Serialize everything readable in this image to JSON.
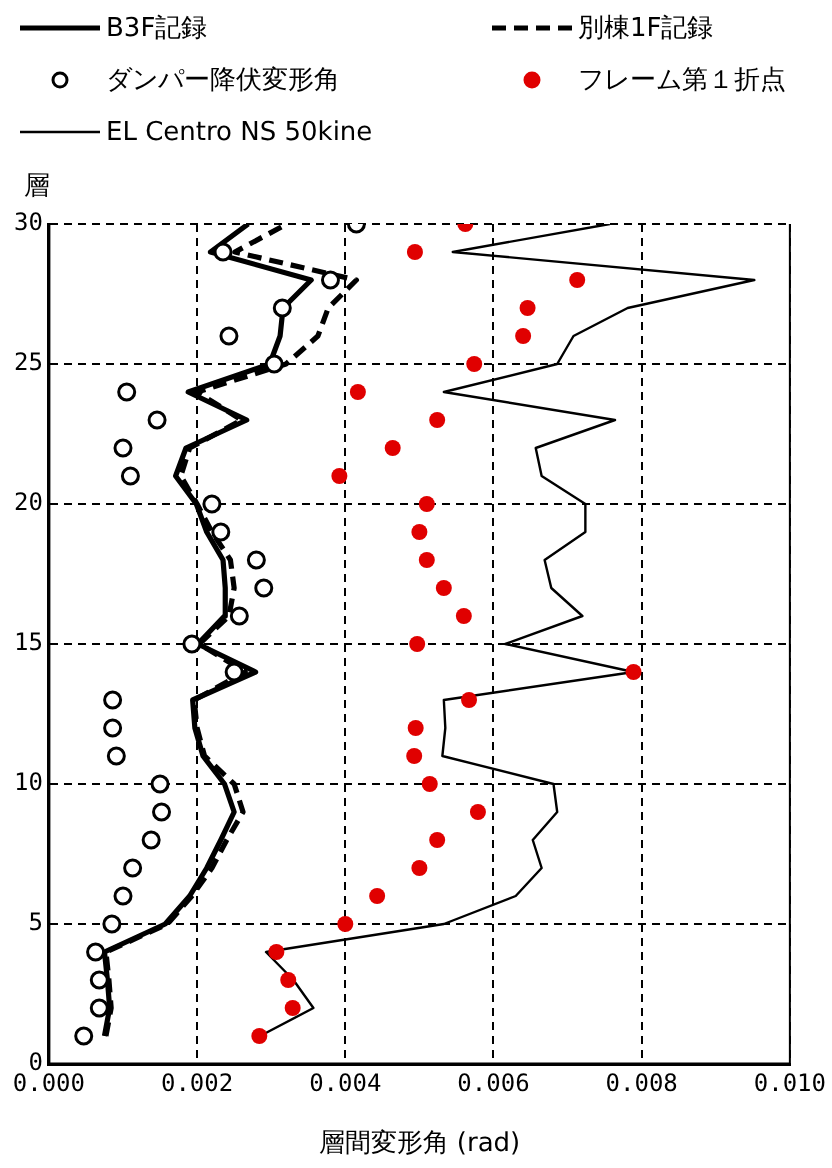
{
  "chart_data": {
    "type": "line",
    "xlabel": "層間変形角 (rad)",
    "ylabel": "層",
    "xlim": [
      0,
      0.01
    ],
    "ylim": [
      0,
      30
    ],
    "xticks": [
      {
        "value": 0,
        "label": "0.000"
      },
      {
        "value": 0.002,
        "label": "0.002"
      },
      {
        "value": 0.004,
        "label": "0.004"
      },
      {
        "value": 0.006,
        "label": "0.006"
      },
      {
        "value": 0.008,
        "label": "0.008"
      },
      {
        "value": 0.01,
        "label": "0.010"
      }
    ],
    "yticks": [
      0,
      5,
      10,
      15,
      20,
      25,
      30
    ],
    "grid": true,
    "legend": "top",
    "series": [
      {
        "name": "B3F記録",
        "line_style": "solid",
        "marker": "none",
        "color": "#000000",
        "x": [
          0.00075,
          0.00082,
          0.00079,
          0.00075,
          0.00157,
          0.0019,
          0.00213,
          0.00232,
          0.0025,
          0.00237,
          0.00208,
          0.00197,
          0.00194,
          0.00279,
          0.00201,
          0.00237,
          0.00238,
          0.00235,
          0.00213,
          0.00199,
          0.00171,
          0.00185,
          0.00267,
          0.00188,
          0.00298,
          0.00312,
          0.00316,
          0.00354,
          0.00218,
          0.00269
        ],
        "values": [
          1,
          2,
          3,
          4,
          5,
          6,
          7,
          8,
          9,
          10,
          11,
          12,
          13,
          14,
          15,
          16,
          17,
          18,
          19,
          20,
          21,
          22,
          23,
          24,
          25,
          26,
          27,
          28,
          29,
          30
        ]
      },
      {
        "name": "別棟1F記録",
        "line_style": "dashed",
        "marker": "none",
        "color": "#000000",
        "x": [
          0.00077,
          0.00084,
          0.00081,
          0.00077,
          0.0016,
          0.00193,
          0.0022,
          0.0024,
          0.00262,
          0.0025,
          0.0021,
          0.002,
          0.00196,
          0.00265,
          0.00203,
          0.00243,
          0.0025,
          0.00245,
          0.0022,
          0.002,
          0.00178,
          0.0019,
          0.0026,
          0.002,
          0.0032,
          0.00363,
          0.00377,
          0.00415,
          0.00251,
          0.00321
        ],
        "values": [
          1,
          2,
          3,
          4,
          5,
          6,
          7,
          8,
          9,
          10,
          11,
          12,
          13,
          14,
          15,
          16,
          17,
          18,
          19,
          20,
          21,
          22,
          23,
          24,
          25,
          26,
          27,
          28,
          29,
          30
        ]
      },
      {
        "name": "ダンパー降伏変形角",
        "type": "scatter",
        "marker": "circle",
        "color": "#000000",
        "x": [
          0.00047,
          0.00068,
          0.00068,
          0.00063,
          0.00085,
          0.001,
          0.00113,
          0.00138,
          0.00152,
          0.0015,
          0.00091,
          0.00086,
          0.00086,
          0.0025,
          0.00193,
          0.00257,
          0.0029,
          0.0028,
          0.00232,
          0.0022,
          0.0011,
          0.001,
          0.00146,
          0.00105,
          0.00304,
          0.00243,
          0.00315,
          0.0038,
          0.00235,
          0.00415
        ],
        "values": [
          1,
          2,
          3,
          4,
          5,
          6,
          7,
          8,
          9,
          10,
          11,
          12,
          13,
          14,
          15,
          16,
          17,
          18,
          19,
          20,
          21,
          22,
          23,
          24,
          25,
          26,
          27,
          28,
          29,
          30
        ]
      },
      {
        "name": "フレーム第１折点",
        "type": "scatter",
        "marker": "circle",
        "color": "#e00000",
        "x": [
          0.00284,
          0.00329,
          0.00323,
          0.00307,
          0.004,
          0.00443,
          0.005,
          0.00524,
          0.00579,
          0.00514,
          0.00493,
          0.00495,
          0.00567,
          0.00789,
          0.00497,
          0.0056,
          0.00533,
          0.0051,
          0.005,
          0.0051,
          0.00392,
          0.00464,
          0.00524,
          0.00417,
          0.00574,
          0.0064,
          0.00646,
          0.00713,
          0.00494,
          0.00562
        ],
        "values": [
          1,
          2,
          3,
          4,
          5,
          6,
          7,
          8,
          9,
          10,
          11,
          12,
          13,
          14,
          15,
          16,
          17,
          18,
          19,
          20,
          21,
          22,
          23,
          24,
          25,
          26,
          27,
          28,
          29,
          30
        ]
      },
      {
        "name": "EL Centro NS 50kine",
        "line_style": "solid",
        "marker": "none",
        "color": "#000000",
        "x": [
          0.00285,
          0.00357,
          0.0033,
          0.00293,
          0.00533,
          0.0063,
          0.00665,
          0.00653,
          0.00686,
          0.00681,
          0.00531,
          0.00535,
          0.00533,
          0.00789,
          0.00616,
          0.0072,
          0.00678,
          0.00669,
          0.00724,
          0.00724,
          0.00665,
          0.00657,
          0.00764,
          0.00533,
          0.00686,
          0.00708,
          0.00781,
          0.00952,
          0.00545,
          0.00757
        ],
        "values": [
          1,
          2,
          3,
          4,
          5,
          6,
          7,
          8,
          9,
          10,
          11,
          12,
          13,
          14,
          15,
          16,
          17,
          18,
          19,
          20,
          21,
          22,
          23,
          24,
          25,
          26,
          27,
          28,
          29,
          30
        ]
      }
    ]
  }
}
